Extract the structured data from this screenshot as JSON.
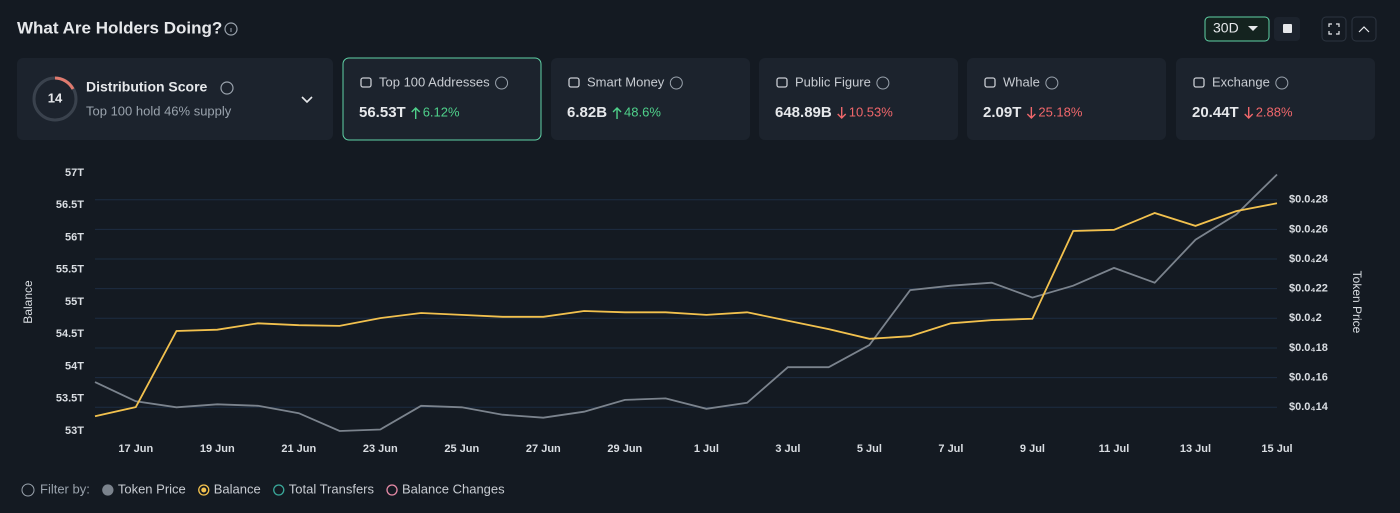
{
  "header": {
    "title": "What Are Holders Doing?",
    "period": "30D"
  },
  "distribution": {
    "score": "14",
    "title": "Distribution Score",
    "subtitle": "Top 100 hold 46% supply"
  },
  "cards": [
    {
      "title": "Top 100 Addresses",
      "value": "56.53T",
      "change": "6.12%",
      "trend": "up"
    },
    {
      "title": "Smart Money",
      "value": "6.82B",
      "change": "48.6%",
      "trend": "up"
    },
    {
      "title": "Public Figure",
      "value": "648.89B",
      "change": "10.53%",
      "trend": "down"
    },
    {
      "title": "Whale",
      "value": "2.09T",
      "change": "25.18%",
      "trend": "down"
    },
    {
      "title": "Exchange",
      "value": "20.44T",
      "change": "2.88%",
      "trend": "down"
    }
  ],
  "chart_data": {
    "type": "line",
    "y_label": "Balance",
    "y2_label": "Token Price",
    "categories": [
      null,
      "17 Jun",
      null,
      "19 Jun",
      null,
      "21 Jun",
      null,
      "23 Jun",
      null,
      "25 Jun",
      null,
      "27 Jun",
      null,
      "29 Jun",
      null,
      "1 Jul",
      null,
      "3 Jul",
      null,
      "5 Jul",
      null,
      "7 Jul",
      null,
      "9 Jul",
      null,
      "11 Jul",
      null,
      "13 Jul",
      null,
      "15 Jul"
    ],
    "series": [
      {
        "name": "Token Price",
        "color": "#7b838d",
        "axis": "y2",
        "values": [
          1.57e-05,
          1.44e-05,
          1.4e-05,
          1.42e-05,
          1.41e-05,
          1.36e-05,
          1.24e-05,
          1.25e-05,
          1.41e-05,
          1.4e-05,
          1.35e-05,
          1.33e-05,
          1.37e-05,
          1.45e-05,
          1.46e-05,
          1.39e-05,
          1.43e-05,
          1.67e-05,
          1.67e-05,
          1.82e-05,
          2.19e-05,
          2.22e-05,
          2.24e-05,
          2.14e-05,
          2.22e-05,
          2.34e-05,
          2.24e-05,
          2.53e-05,
          2.7e-05,
          2.97e-05
        ]
      },
      {
        "name": "Balance",
        "color": "#f2c14e",
        "values": [
          53.23,
          53.37,
          54.55,
          54.57,
          54.67,
          54.64,
          54.63,
          54.75,
          54.83,
          54.8,
          54.77,
          54.77,
          54.86,
          54.84,
          54.84,
          54.8,
          54.84,
          54.71,
          54.58,
          54.43,
          54.47,
          54.67,
          54.72,
          54.74,
          56.1,
          56.12,
          56.38,
          56.18,
          56.41,
          56.53
        ]
      }
    ],
    "filter_label": "Filter by:",
    "filters": [
      {
        "name": "Total Transfers",
        "color": "#3aa89a"
      },
      {
        "name": "Balance Changes",
        "color": "#e58aa6"
      }
    ],
    "ylim": [
      53,
      57
    ],
    "yticks": [
      {
        "value": 53,
        "label": "53T"
      },
      {
        "value": 53.5,
        "label": "53.5T"
      },
      {
        "value": 54,
        "label": "54T"
      },
      {
        "value": 54.5,
        "label": "54.5T"
      },
      {
        "value": 55,
        "label": "55T"
      },
      {
        "value": 55.5,
        "label": "55.5T"
      },
      {
        "value": 56,
        "label": "56T"
      },
      {
        "value": 56.5,
        "label": "56.5T"
      },
      {
        "value": 57,
        "label": "57T"
      }
    ],
    "y2lim": [
      1.24e-05,
      2.98e-05
    ],
    "y2ticks": [
      {
        "value": 1.4e-05,
        "label": "$0.0₄14"
      },
      {
        "value": 1.6e-05,
        "label": "$0.0₄16"
      },
      {
        "value": 1.8e-05,
        "label": "$0.0₄18"
      },
      {
        "value": 2e-05,
        "label": "$0.0₄2"
      },
      {
        "value": 2.2e-05,
        "label": "$0.0₄22"
      },
      {
        "value": 2.4e-05,
        "label": "$0.0₄24"
      },
      {
        "value": 2.6e-05,
        "label": "$0.0₄26"
      },
      {
        "value": 2.8e-05,
        "label": "$0.0₄28"
      }
    ],
    "grid": true
  }
}
